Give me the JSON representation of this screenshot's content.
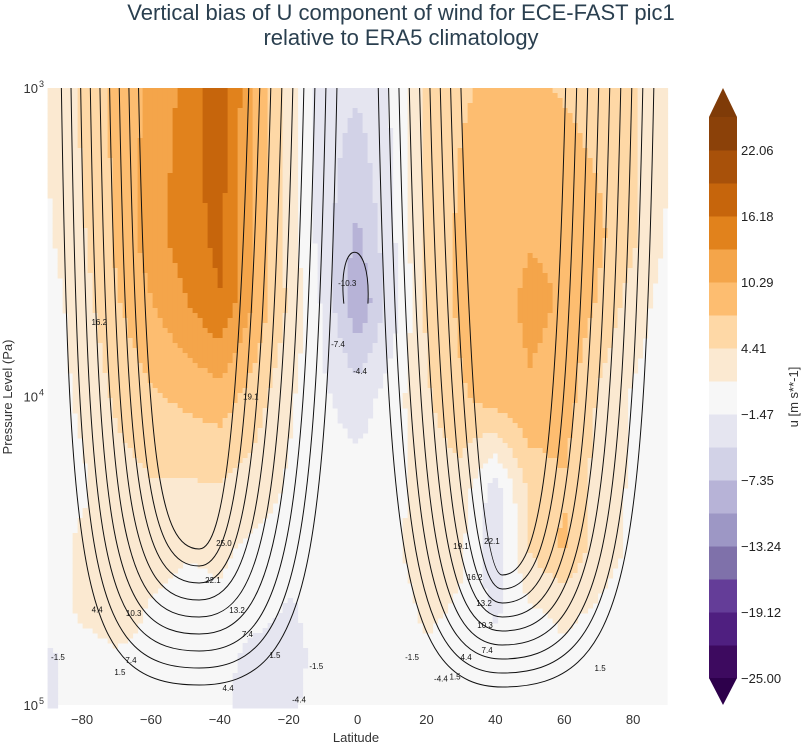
{
  "chart_data": {
    "type": "heatmap",
    "title_line1": "Vertical bias of U component of wind for ECE-FAST pic1",
    "title_line2": "relative to ERA5 climatology",
    "xlabel": "Latitude",
    "ylabel": "Pressure Level (Pa)",
    "xlim": [
      -90,
      90
    ],
    "ylim": [
      100000,
      1000
    ],
    "y_scale": "log",
    "x_ticks": [
      "−80",
      "−60",
      "−40",
      "−20",
      "0",
      "20",
      "40",
      "60",
      "80"
    ],
    "x_tick_values": [
      -80,
      -60,
      -40,
      -20,
      0,
      20,
      40,
      60,
      80
    ],
    "y_ticks": [
      {
        "base": "10",
        "exp": "3",
        "value": 1000
      },
      {
        "base": "10",
        "exp": "4",
        "value": 10000
      },
      {
        "base": "10",
        "exp": "5",
        "value": 100000
      }
    ],
    "grid": false,
    "colorbar": {
      "label": "u [m s**-1]",
      "placement": "right",
      "min": -25.0,
      "max": 25.0,
      "n_bands": 17,
      "extend": "both",
      "tick_labels": [
        "22.06",
        "16.18",
        "10.29",
        "4.41",
        "−1.47",
        "−7.35",
        "−13.24",
        "−19.12",
        "−25.00"
      ],
      "tick_values": [
        22.06,
        16.18,
        10.29,
        4.41,
        -1.47,
        -7.35,
        -13.24,
        -19.12,
        -25.0
      ],
      "band_colors": [
        "#3d0a5f",
        "#4f1f80",
        "#643d98",
        "#7f71aa",
        "#9d97c5",
        "#b7b3d7",
        "#d2d2e7",
        "#e5e5f0",
        "#f7f7f7",
        "#fbe9d1",
        "#fed8a6",
        "#fdbd70",
        "#f4a54a",
        "#e1821c",
        "#c6650c",
        "#a8510a",
        "#8b4109"
      ],
      "extend_low_color": "#2d004b",
      "extend_high_color": "#7f3b08"
    },
    "latitudes": [
      -90,
      -80,
      -70,
      -60,
      -50,
      -40,
      -30,
      -20,
      -10,
      0,
      10,
      20,
      30,
      40,
      50,
      60,
      70,
      80,
      90
    ],
    "pressure_levels": [
      1000,
      3000,
      5000,
      10000,
      20000,
      30000,
      50000,
      70000,
      100000
    ],
    "bias_values": [
      [
        2,
        5,
        8,
        11,
        14,
        18,
        10,
        3,
        -3,
        -4,
        -1,
        5,
        7,
        8,
        8,
        7,
        6,
        5,
        2
      ],
      [
        1,
        4,
        8,
        12,
        15,
        17,
        10,
        3,
        -3,
        -8,
        -2,
        5,
        8,
        9,
        10,
        10,
        8,
        5,
        1
      ],
      [
        0,
        3,
        7,
        10,
        13,
        16,
        10,
        4,
        -2,
        -10,
        -3,
        5,
        8,
        9,
        11,
        10,
        7,
        3,
        0
      ],
      [
        0,
        2,
        5,
        7,
        8,
        9,
        6,
        2,
        -1,
        -3,
        0,
        4,
        7,
        9,
        10,
        9,
        4,
        1,
        0
      ],
      [
        0,
        1,
        3,
        4,
        4,
        4,
        3,
        1,
        0,
        0,
        0,
        3,
        3,
        -3,
        5,
        7,
        3,
        1,
        0
      ],
      [
        0,
        2,
        3,
        3,
        2,
        2,
        1,
        0,
        0,
        0,
        1,
        3,
        2,
        -4,
        5,
        8,
        3,
        1,
        0
      ],
      [
        0,
        2,
        3,
        1,
        0,
        1,
        0,
        -2,
        0,
        0,
        0,
        2,
        1,
        -2,
        1,
        2,
        1,
        0,
        0
      ],
      [
        -2,
        0,
        1,
        1,
        0,
        0,
        -3,
        -3,
        0,
        0,
        0,
        1,
        0,
        0,
        0,
        1,
        0,
        0,
        0
      ],
      [
        -2,
        0,
        1,
        1,
        1,
        0,
        -4,
        -2,
        0,
        0,
        0,
        0,
        0,
        0,
        0,
        0,
        0,
        0,
        0
      ]
    ],
    "contour_labels": [
      {
        "text": "-10.3",
        "lat": -3,
        "p": 4285
      },
      {
        "text": "-7.4",
        "lat": -5.7,
        "p": 6760
      },
      {
        "text": "-4.4",
        "lat": 0.7,
        "p": 8260
      },
      {
        "text": "16.2",
        "lat": -75,
        "p": 5730
      },
      {
        "text": "19.1",
        "lat": -31,
        "p": 10000
      },
      {
        "text": "25.0",
        "lat": -38.8,
        "p": 29900
      },
      {
        "text": "22.1",
        "lat": -42,
        "p": 39400
      },
      {
        "text": "13.2",
        "lat": -35,
        "p": 49200
      },
      {
        "text": "10.3",
        "lat": -65,
        "p": 50300
      },
      {
        "text": "7.4",
        "lat": -32,
        "p": 58900
      },
      {
        "text": "4.4",
        "lat": -75.6,
        "p": 49000
      },
      {
        "text": "7.4",
        "lat": -65.8,
        "p": 71400
      },
      {
        "text": "1.5",
        "lat": -69,
        "p": 78200
      },
      {
        "text": "4.4",
        "lat": -37.6,
        "p": 88100
      },
      {
        "text": "1.5",
        "lat": -24,
        "p": 68800
      },
      {
        "text": "-1.5",
        "lat": -12,
        "p": 74800
      },
      {
        "text": "-4.4",
        "lat": -17,
        "p": 96000
      },
      {
        "text": "-1.5",
        "lat": -87,
        "p": 70000
      },
      {
        "text": "-1.5",
        "lat": 15.8,
        "p": 70000
      },
      {
        "text": "-4.4",
        "lat": 24.2,
        "p": 82000
      },
      {
        "text": "1.5",
        "lat": 28.3,
        "p": 80800
      },
      {
        "text": "4.4",
        "lat": 31.5,
        "p": 70000
      },
      {
        "text": "7.4",
        "lat": 37.6,
        "p": 66300
      },
      {
        "text": "10.3",
        "lat": 37,
        "p": 55000
      },
      {
        "text": "13.2",
        "lat": 36.7,
        "p": 46700
      },
      {
        "text": "16.2",
        "lat": 34,
        "p": 38500
      },
      {
        "text": "19.1",
        "lat": 30,
        "p": 30500
      },
      {
        "text": "22.1",
        "lat": 39,
        "p": 29400
      },
      {
        "text": "1.5",
        "lat": 70.4,
        "p": 76000
      }
    ]
  }
}
